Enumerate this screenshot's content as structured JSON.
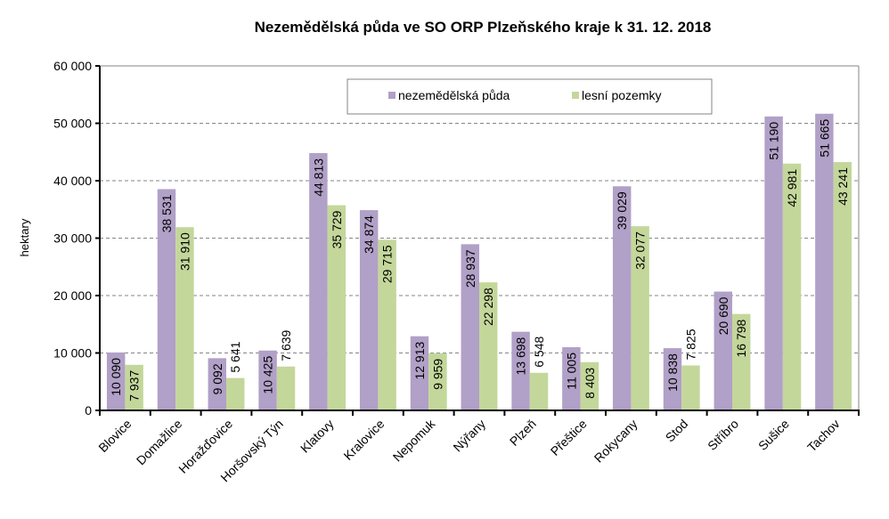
{
  "chart_data": {
    "type": "bar",
    "title": "Nezemědělská půda ve SO ORP Plzeňského kraje k 31. 12. 2018",
    "xlabel": "",
    "ylabel": "hektary",
    "ylim": [
      0,
      60000
    ],
    "yticks": [
      0,
      10000,
      20000,
      30000,
      40000,
      50000,
      60000
    ],
    "ytick_labels": [
      "0",
      "10 000",
      "20 000",
      "30 000",
      "40 000",
      "50 000",
      "60 000"
    ],
    "grid": "horizontal dashed",
    "legend_position": "top-center",
    "categories": [
      "Blovice",
      "Domažlice",
      "Horažďovice",
      "Horšovský Týn",
      "Klatovy",
      "Kralovice",
      "Nepomuk",
      "Nýřany",
      "Plzeň",
      "Přeštice",
      "Rokycany",
      "Stod",
      "Stříbro",
      "Sušice",
      "Tachov"
    ],
    "series": [
      {
        "name": "nezemědělská půda",
        "color": "#b1a0c7",
        "values": [
          10090,
          38531,
          9092,
          10425,
          44813,
          34874,
          12913,
          28937,
          13698,
          11005,
          39029,
          10838,
          20690,
          51190,
          51665
        ],
        "labels": [
          "10 090",
          "38 531",
          "9 092",
          "10 425",
          "44 813",
          "34 874",
          "12 913",
          "28 937",
          "13 698",
          "11 005",
          "39 029",
          "10 838",
          "20 690",
          "51 190",
          "51 665"
        ]
      },
      {
        "name": "lesní pozemky",
        "color": "#c4d79b",
        "values": [
          7937,
          31910,
          5641,
          7639,
          35729,
          29715,
          9959,
          22298,
          6548,
          8403,
          32077,
          7825,
          16798,
          42981,
          43241
        ],
        "labels": [
          "7 937",
          "31 910",
          "5 641",
          "7 639",
          "35 729",
          "29 715",
          "9 959",
          "22 298",
          "6 548",
          "8 403",
          "32 077",
          "7 825",
          "16 798",
          "42 981",
          "43 241"
        ]
      }
    ]
  }
}
